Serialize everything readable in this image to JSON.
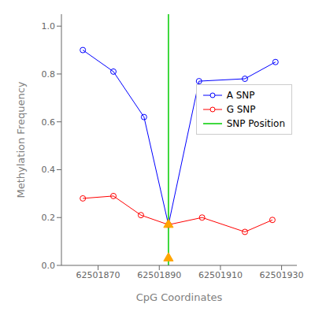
{
  "chart_data": {
    "type": "line",
    "xlabel": "CpG Coordinates",
    "ylabel": "Methylation Frequency",
    "series": [
      {
        "name": "A SNP",
        "color": "#0000FF",
        "marker": "circle",
        "x": [
          62501865,
          62501875,
          62501885,
          62501893,
          62501903,
          62501918,
          62501928
        ],
        "values": [
          0.9,
          0.81,
          0.62,
          0.17,
          0.77,
          0.78,
          0.85
        ]
      },
      {
        "name": "G SNP",
        "color": "#FF0000",
        "marker": "circle",
        "x": [
          62501865,
          62501875,
          62501884,
          62501893,
          62501904,
          62501918,
          62501927
        ],
        "values": [
          0.28,
          0.29,
          0.21,
          0.17,
          0.2,
          0.14,
          0.19
        ]
      },
      {
        "name": "SNP Position",
        "type": "vline",
        "color": "#00CC00",
        "x": [
          62501893
        ]
      },
      {
        "type": "scatter",
        "color": "#FFA500",
        "marker": "triangle",
        "x": [
          62501893,
          62501893
        ],
        "values": [
          0.17,
          0.03
        ]
      }
    ],
    "xlim": [
      62501858,
      62501935
    ],
    "ylim": [
      0.0,
      1.05
    ],
    "xticks": [
      62501870,
      62501890,
      62501910,
      62501930
    ],
    "yticks": [
      {
        "value": 0,
        "label": "0.0"
      },
      0.2,
      0.4,
      0.6,
      0.8,
      {
        "value": 1,
        "label": "1.0"
      }
    ],
    "legend": "upper right"
  }
}
